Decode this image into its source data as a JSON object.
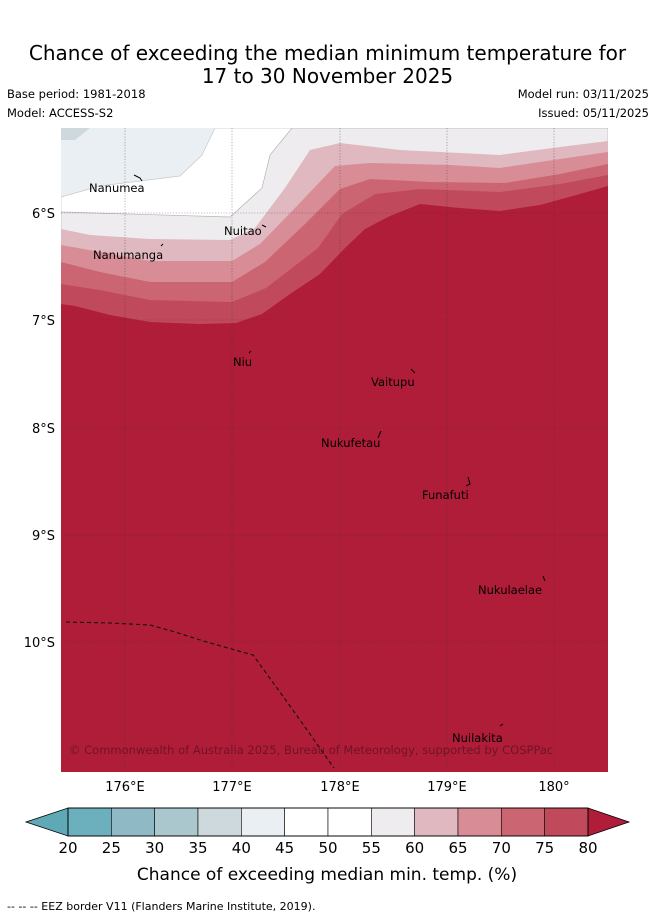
{
  "title": {
    "line1": "Chance of exceeding the median minimum temperature for",
    "line2": "17 to 30 November 2025"
  },
  "meta": {
    "base_period": "Base period: 1981-2018",
    "model": "Model: ACCESS-S2",
    "model_run": "Model run: 03/11/2025",
    "issued": "Issued: 05/11/2025"
  },
  "map": {
    "lon_labels": [
      "176°E",
      "177°E",
      "178°E",
      "179°E",
      "180°"
    ],
    "lat_labels": [
      "6°S",
      "7°S",
      "8°S",
      "9°S",
      "10°S"
    ],
    "places": [
      {
        "name": "Nanumea",
        "lon": 176.08,
        "lat": -5.68
      },
      {
        "name": "Nuitao",
        "lon": 177.32,
        "lat": -6.12
      },
      {
        "name": "Nanumanga",
        "lon": 176.32,
        "lat": -6.3
      },
      {
        "name": "Niu",
        "lon": 177.17,
        "lat": -7.28
      },
      {
        "name": "Vaitupu",
        "lon": 178.67,
        "lat": -7.48
      },
      {
        "name": "Nukufetau",
        "lon": 178.38,
        "lat": -8.03
      },
      {
        "name": "Funafuti",
        "lon": 179.2,
        "lat": -8.52
      },
      {
        "name": "Nukulaelae",
        "lon": 179.83,
        "lat": -9.38
      },
      {
        "name": "Nuilakita",
        "lon": 179.5,
        "lat": -10.78
      }
    ],
    "copyright": "© Commonwealth of Australia 2025, Bureau of Meteorology, supported by COSPPac"
  },
  "legend": {
    "ticks": [
      "20",
      "25",
      "30",
      "35",
      "40",
      "45",
      "50",
      "55",
      "60",
      "65",
      "70",
      "75",
      "80"
    ],
    "colors": [
      "#6bb0bc",
      "#8fbac5",
      "#a9c7cc",
      "#cdd9dc",
      "#e9eff2",
      "#ffffff",
      "#ffffff",
      "#eeecee",
      "#e0b8bf",
      "#d88c96",
      "#cc6572",
      "#c04a5c"
    ],
    "under_color": "#5ea9b5",
    "over_color": "#b01d38",
    "label": "Chance of exceeding median min. temp. (%)"
  },
  "footnote": "--  --  -- EEZ border V11 (Flanders Marine Institute, 2019)."
}
